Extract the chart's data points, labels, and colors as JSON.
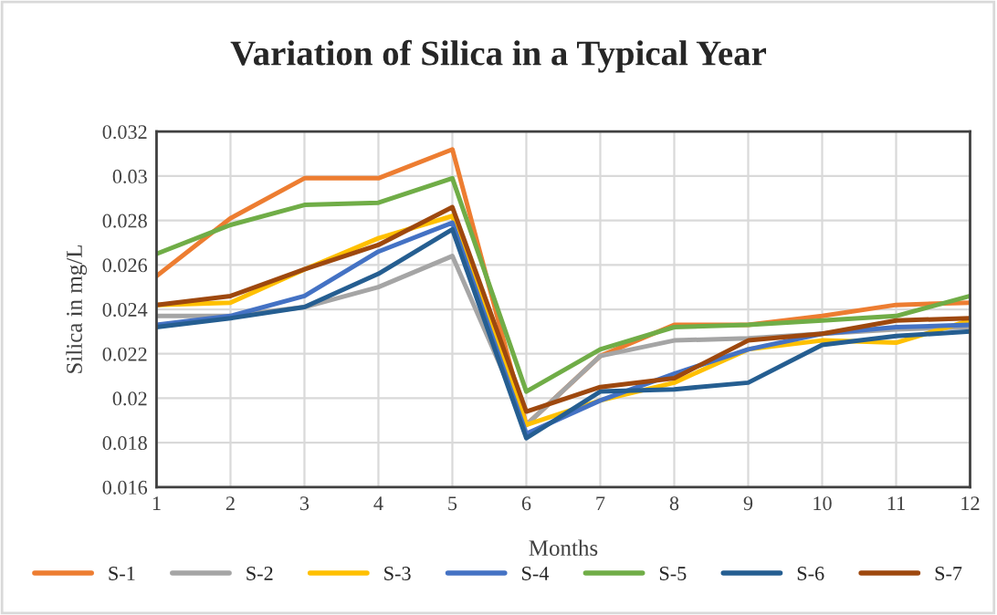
{
  "chart_data": {
    "type": "line",
    "title": "Variation of Silica in a Typical Year",
    "xlabel": "Months",
    "ylabel": "Silica in mg/L",
    "x": [
      1,
      2,
      3,
      4,
      5,
      6,
      7,
      8,
      9,
      10,
      11,
      12
    ],
    "series": [
      {
        "name": "S-1",
        "color": "#ed7d31",
        "values": [
          0.0255,
          0.0281,
          0.0299,
          0.0299,
          0.0312,
          0.0188,
          0.0219,
          0.0233,
          0.0233,
          0.0237,
          0.0242,
          0.0243
        ]
      },
      {
        "name": "S-2",
        "color": "#a5a5a5",
        "values": [
          0.0237,
          0.0237,
          0.0241,
          0.025,
          0.0264,
          0.0188,
          0.0219,
          0.0226,
          0.0227,
          0.0229,
          0.0231,
          0.0232
        ]
      },
      {
        "name": "S-3",
        "color": "#ffc000",
        "values": [
          0.0242,
          0.0243,
          0.0258,
          0.0272,
          0.0282,
          0.0188,
          0.0199,
          0.0207,
          0.0222,
          0.0226,
          0.0225,
          0.0235
        ]
      },
      {
        "name": "S-4",
        "color": "#4472c4",
        "values": [
          0.0233,
          0.0237,
          0.0246,
          0.0266,
          0.0279,
          0.0184,
          0.0199,
          0.0211,
          0.0222,
          0.0229,
          0.0232,
          0.0233
        ]
      },
      {
        "name": "S-5",
        "color": "#70ad47",
        "values": [
          0.0265,
          0.0278,
          0.0287,
          0.0288,
          0.0299,
          0.0203,
          0.0222,
          0.0232,
          0.0233,
          0.0235,
          0.0237,
          0.0246
        ]
      },
      {
        "name": "S-6",
        "color": "#255e91",
        "values": [
          0.0232,
          0.0236,
          0.0241,
          0.0256,
          0.0276,
          0.0182,
          0.0203,
          0.0204,
          0.0207,
          0.0224,
          0.0228,
          0.023
        ]
      },
      {
        "name": "S-7",
        "color": "#9e480e",
        "values": [
          0.0242,
          0.0246,
          0.0258,
          0.0269,
          0.0286,
          0.0194,
          0.0205,
          0.0209,
          0.0226,
          0.0229,
          0.0235,
          0.0236
        ]
      }
    ],
    "xlim": [
      1,
      12
    ],
    "xticks": [
      1,
      2,
      3,
      4,
      5,
      6,
      7,
      8,
      9,
      10,
      11,
      12
    ],
    "ylim": [
      0.016,
      0.032
    ],
    "yticks": [
      0.016,
      0.018,
      0.02,
      0.022,
      0.024,
      0.026,
      0.028,
      {
        "value": 0.03,
        "label": "0.03"
      },
      0.032
    ],
    "grid": true,
    "legend": "bottom",
    "marker": "none",
    "line_style": "solid"
  }
}
